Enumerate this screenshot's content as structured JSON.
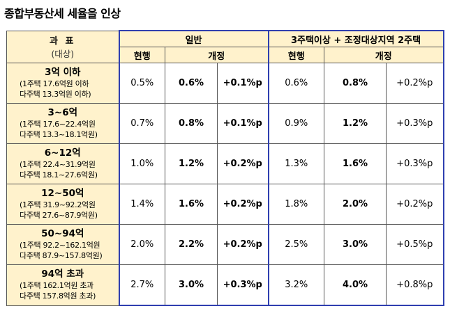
{
  "title": "종합부동산세 세율을 인상",
  "header": {
    "category_label": "과 표",
    "category_sub": "(대상)",
    "group1": "일반",
    "group2": "3주택이상 + 조정대상지역 2주택",
    "current": "현행",
    "revised": "개정"
  },
  "rows": [
    {
      "bracket": "3억 이하",
      "line1": "(1주택 17.6억원 이하",
      "line2": "다주택 13.3억원 이하)",
      "g_cur": "0.5%",
      "g_rev": "0.6%",
      "g_diff": "+0.1%p",
      "m_cur": "0.6%",
      "m_rev": "0.8%",
      "m_diff": "+0.2%p"
    },
    {
      "bracket": "3~6억",
      "line1": "(1주택 17.6~22.4억원",
      "line2": "다주택 13.3~18.1억원)",
      "g_cur": "0.7%",
      "g_rev": "0.8%",
      "g_diff": "+0.1%p",
      "m_cur": "0.9%",
      "m_rev": "1.2%",
      "m_diff": "+0.3%p"
    },
    {
      "bracket": "6~12억",
      "line1": "(1주택 22.4~31.9억원",
      "line2": "다주택 18.1~27.6억원)",
      "g_cur": "1.0%",
      "g_rev": "1.2%",
      "g_diff": "+0.2%p",
      "m_cur": "1.3%",
      "m_rev": "1.6%",
      "m_diff": "+0.3%p"
    },
    {
      "bracket": "12~50억",
      "line1": "(1주택 31.9~92.2억원",
      "line2": "다주택 27.6~87.9억원)",
      "g_cur": "1.4%",
      "g_rev": "1.6%",
      "g_diff": "+0.2%p",
      "m_cur": "1.8%",
      "m_rev": "2.0%",
      "m_diff": "+0.2%p"
    },
    {
      "bracket": "50~94억",
      "line1": "(1주택 92.2~162.1억원",
      "line2": "다주택 87.9~157.8억원)",
      "g_cur": "2.0%",
      "g_rev": "2.2%",
      "g_diff": "+0.2%p",
      "m_cur": "2.5%",
      "m_rev": "3.0%",
      "m_diff": "+0.5%p"
    },
    {
      "bracket": "94억 초과",
      "line1": "(1주택 162.1억원 초과",
      "line2": "다주택 157.8억원 초과)",
      "g_cur": "2.7%",
      "g_rev": "3.0%",
      "g_diff": "+0.3%p",
      "m_cur": "3.2%",
      "m_rev": "4.0%",
      "m_diff": "+0.8%p"
    }
  ]
}
